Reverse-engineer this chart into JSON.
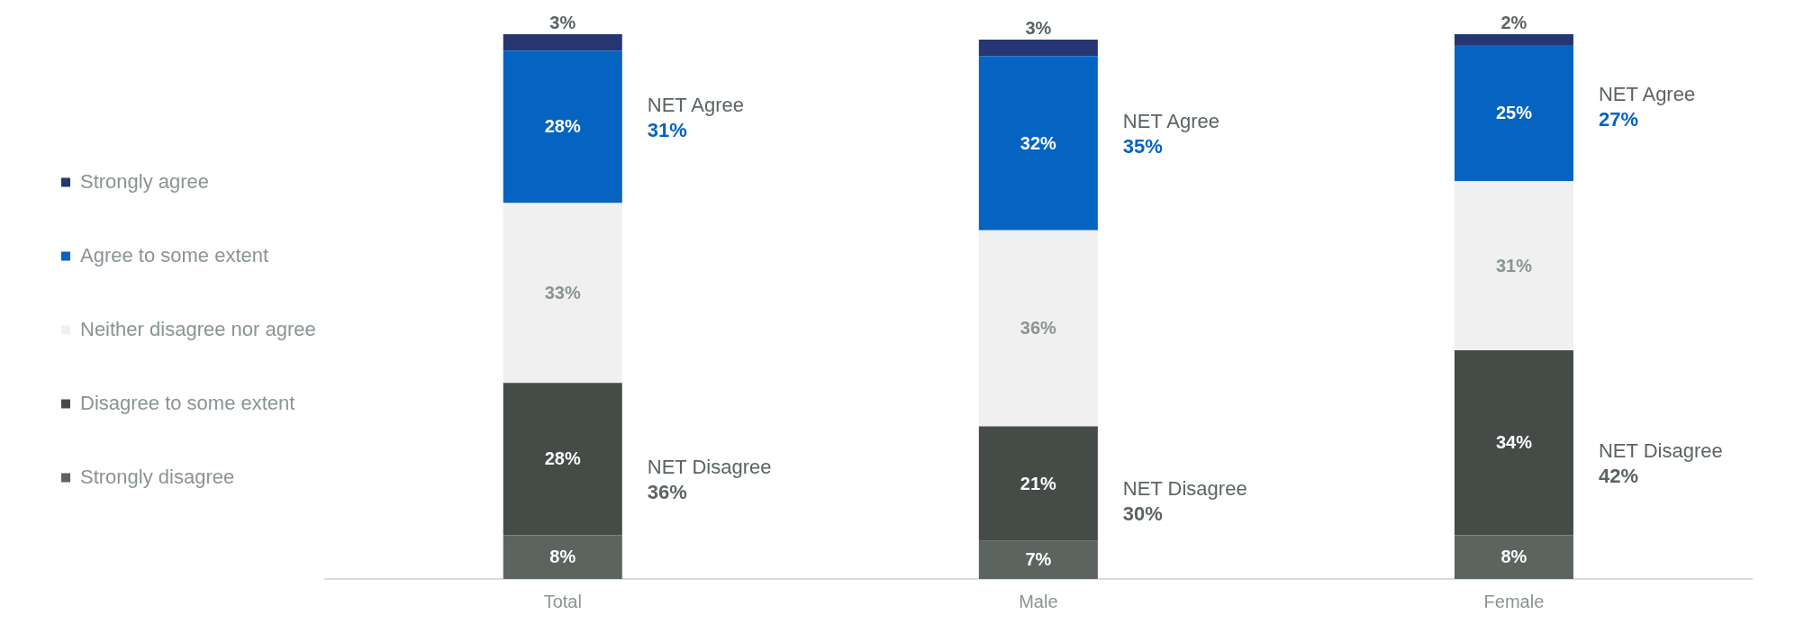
{
  "chart_data": {
    "type": "bar",
    "stacked": true,
    "legend": "left",
    "grid": false,
    "categories": [
      "Total",
      "Male",
      "Female"
    ],
    "series": [
      {
        "name": "Strongly disagree",
        "color": "#5b645f",
        "values": [
          8,
          7,
          8
        ],
        "value_labels": [
          "8%",
          "7%",
          "8%"
        ]
      },
      {
        "name": "Disagree to some extent",
        "color": "#454b47",
        "values": [
          28,
          21,
          34
        ],
        "value_labels": [
          "28%",
          "21%",
          "34%"
        ]
      },
      {
        "name": "Neither disagree nor agree",
        "color": "#f0f0f0",
        "values": [
          33,
          36,
          31
        ],
        "value_labels": [
          "33%",
          "36%",
          "31%"
        ]
      },
      {
        "name": "Agree to some extent",
        "color": "#0563c1",
        "values": [
          28,
          32,
          25
        ],
        "value_labels": [
          "28%",
          "32%",
          "25%"
        ]
      },
      {
        "name": "Strongly agree",
        "color": "#253672",
        "values": [
          3,
          3,
          2
        ],
        "value_labels": [
          "3%",
          "3%",
          "2%"
        ]
      }
    ],
    "annotations": [
      "NET Agree",
      "31%",
      "NET Disagree",
      "36%",
      "NET Agree",
      "35%",
      "NET Disagree",
      "30%",
      "NET Agree",
      "27%",
      "NET Disagree",
      "42%"
    ]
  }
}
